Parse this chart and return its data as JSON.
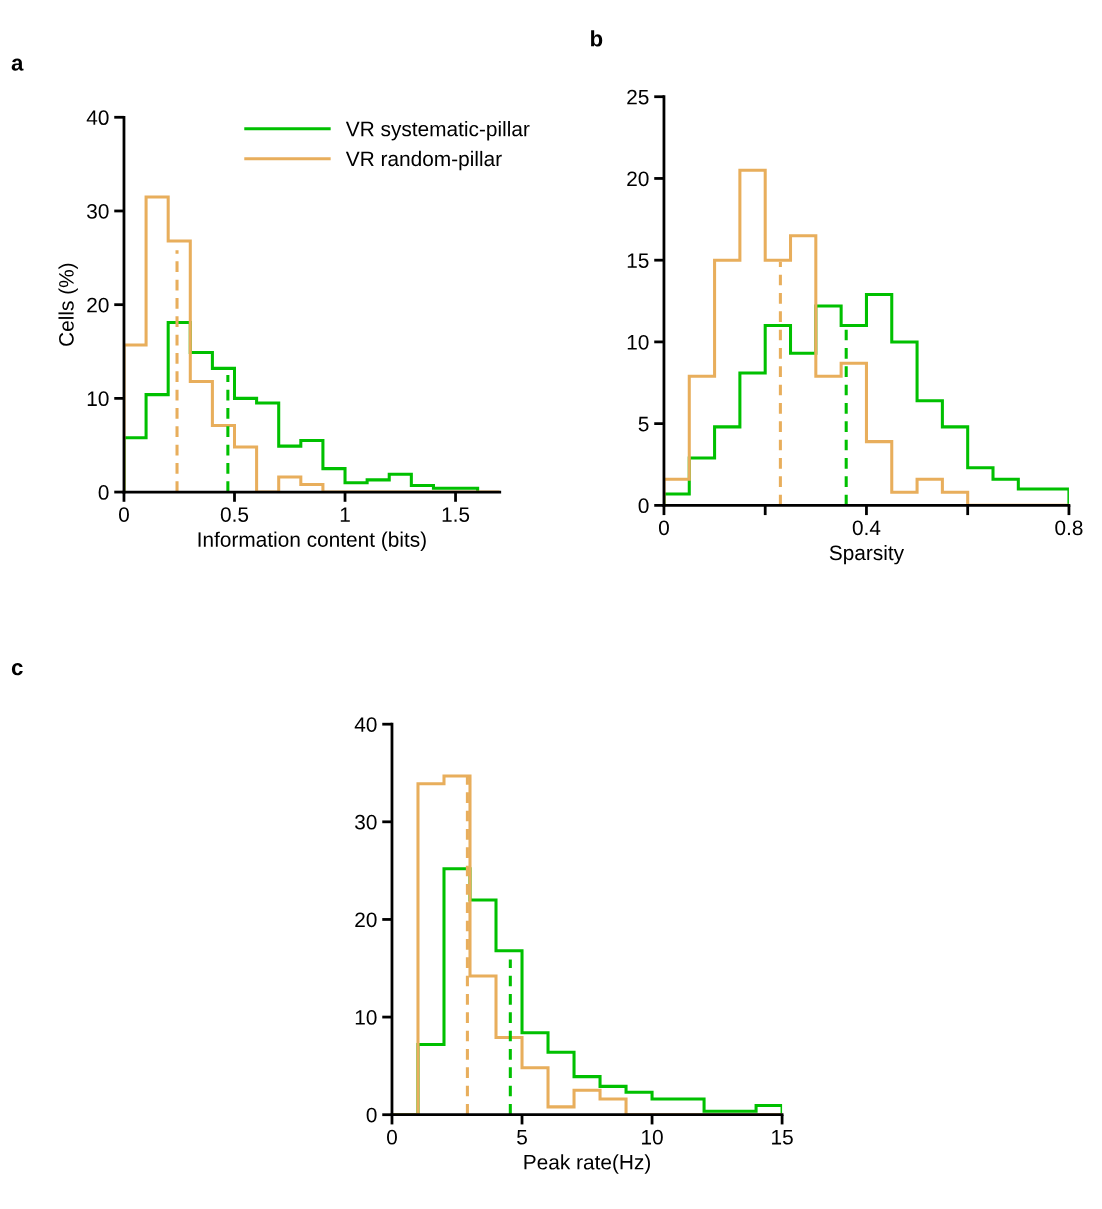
{
  "chart_data": [
    {
      "type": "histogram",
      "annotations": [
        "a"
      ],
      "xlabel": "Information content (bits)",
      "ylabel": "Cells (%)",
      "xlim": [
        0,
        1.7
      ],
      "xticks": [
        0,
        0.5,
        1,
        1.5
      ],
      "ylim": [
        0,
        40
      ],
      "yticks": [
        0,
        10,
        20,
        30,
        40
      ],
      "grid": false,
      "legend": "top right",
      "series": [
        {
          "name": "VR systematic-pillar",
          "color": "#00c000",
          "bins": [
            0,
            0.1,
            0.2,
            0.3,
            0.4,
            0.5,
            0.6,
            0.7,
            0.8,
            0.9,
            1.0,
            1.1,
            1.2,
            1.3,
            1.4,
            1.5,
            1.6
          ],
          "values": [
            5.8,
            10.4,
            18.1,
            14.9,
            13.2,
            10.0,
            9.5,
            4.9,
            5.5,
            2.5,
            1.0,
            1.3,
            1.9,
            0.7,
            0.4,
            0.4
          ]
        },
        {
          "name": "VR random-pillar",
          "color": "#e8ae5c",
          "bins": [
            0,
            0.1,
            0.2,
            0.3,
            0.4,
            0.5,
            0.6,
            0.7,
            0.8,
            0.9,
            1.0,
            1.1,
            1.2,
            1.3,
            1.4,
            1.5,
            1.6,
            1.7
          ],
          "values": [
            15.7,
            31.5,
            26.8,
            11.8,
            7.1,
            4.8,
            0,
            1.6,
            0.8,
            0,
            0,
            0,
            0,
            0,
            0,
            0,
            0
          ]
        },
        {
          "type": "line",
          "color": "#e8ae5c",
          "line_style": "dashed",
          "x": [
            0.24,
            0.24
          ],
          "values": [
            0,
            25.8
          ]
        },
        {
          "type": "line",
          "color": "#00c000",
          "line_style": "dashed",
          "x": [
            0.47,
            0.47
          ],
          "values": [
            0,
            12.5
          ]
        }
      ]
    },
    {
      "type": "histogram",
      "annotations": [
        "b"
      ],
      "xlabel": "Sparsity",
      "xlim": [
        0,
        0.8
      ],
      "xticks": [
        0,
        {
          "value": 0.2,
          "label": null
        },
        0.4,
        {
          "value": 0.6,
          "label": null
        },
        0.8
      ],
      "ylim": [
        0,
        25
      ],
      "yticks": [
        0,
        5,
        10,
        15,
        20,
        25
      ],
      "grid": false,
      "series": [
        {
          "color": "#00c000",
          "bins": [
            0,
            0.05,
            0.1,
            0.15,
            0.2,
            0.25,
            0.3,
            0.35,
            0.4,
            0.45,
            0.5,
            0.55,
            0.6,
            0.65,
            0.7,
            0.75,
            0.8
          ],
          "values": [
            0.7,
            2.9,
            4.8,
            8.1,
            11.0,
            9.3,
            12.2,
            11.0,
            12.9,
            10.0,
            6.4,
            4.8,
            2.3,
            1.6,
            1.0,
            1.0
          ]
        },
        {
          "color": "#e8ae5c",
          "bins": [
            0,
            0.05,
            0.1,
            0.15,
            0.2,
            0.25,
            0.3,
            0.35,
            0.4,
            0.45,
            0.5,
            0.55,
            0.6,
            0.65,
            0.7,
            0.75,
            0.8
          ],
          "values": [
            1.6,
            7.9,
            15.0,
            20.5,
            15.0,
            16.5,
            7.9,
            8.7,
            3.9,
            0.8,
            1.6,
            0.8,
            0,
            0,
            0,
            0
          ]
        },
        {
          "type": "line",
          "color": "#e8ae5c",
          "line_style": "dashed",
          "x": [
            0.23,
            0.23
          ],
          "values": [
            0,
            14.9
          ]
        },
        {
          "type": "line",
          "color": "#00c000",
          "line_style": "dashed",
          "x": [
            0.36,
            0.36
          ],
          "values": [
            0,
            10.9
          ]
        }
      ]
    },
    {
      "type": "histogram",
      "annotations": [
        "c"
      ],
      "xlabel": "Peak rate(Hz)",
      "xlim": [
        0,
        15
      ],
      "xticks": [
        0,
        5,
        10,
        15
      ],
      "ylim": [
        0,
        40
      ],
      "yticks": [
        0,
        10,
        20,
        30,
        40
      ],
      "grid": false,
      "series": [
        {
          "color": "#00c000",
          "bins": [
            0,
            1,
            2,
            3,
            4,
            5,
            6,
            7,
            8,
            9,
            10,
            11,
            12,
            13,
            14,
            15
          ],
          "values": [
            0,
            7.2,
            25.2,
            22.0,
            16.8,
            8.4,
            6.4,
            3.9,
            2.9,
            2.3,
            1.6,
            1.6,
            0.35,
            0.35,
            0.95
          ]
        },
        {
          "color": "#e8ae5c",
          "bins": [
            0,
            1,
            2,
            3,
            4,
            5,
            6,
            7,
            8,
            9,
            10,
            11,
            12,
            13,
            14,
            15
          ],
          "values": [
            0,
            33.9,
            34.7,
            14.2,
            7.9,
            4.8,
            0.8,
            2.5,
            1.6,
            0,
            0,
            0,
            0,
            0,
            0
          ]
        },
        {
          "type": "line",
          "color": "#e8ae5c",
          "line_style": "dashed",
          "x": [
            2.9,
            2.9
          ],
          "values": [
            0,
            34.7
          ]
        },
        {
          "type": "line",
          "color": "#00c000",
          "line_style": "dashed",
          "x": [
            4.55,
            4.55
          ],
          "values": [
            0,
            15.9
          ]
        }
      ]
    }
  ]
}
